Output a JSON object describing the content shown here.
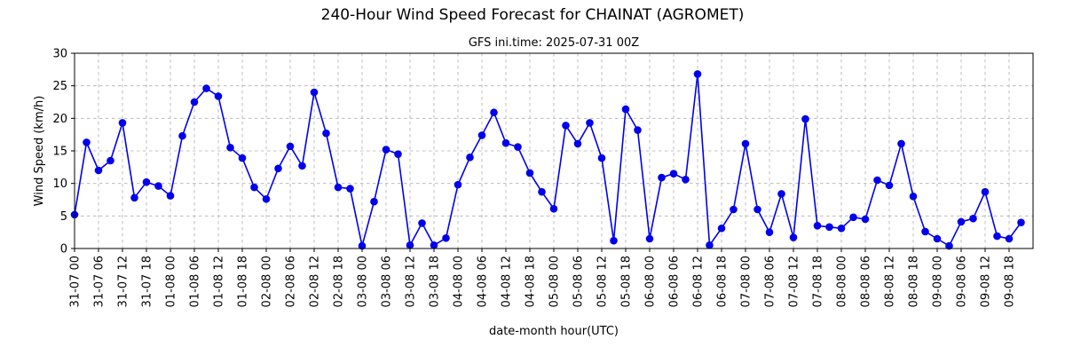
{
  "chart_data": {
    "type": "line",
    "title": "240-Hour Wind Speed Forecast for CHAINAT (AGROMET)",
    "subtitle": "GFS ini.time: 2025-07-31 00Z",
    "xlabel": "date-month hour(UTC)",
    "ylabel": "Wind Speed (km/h)",
    "ylim": [
      0,
      30
    ],
    "yticks": [
      0,
      5,
      10,
      15,
      20,
      25,
      30
    ],
    "grid": true,
    "colors": {
      "line": "#0000ee",
      "marker": "#0000ee"
    },
    "x_ticks": [
      "31-07 00",
      "31-07 06",
      "31-07 12",
      "31-07 18",
      "01-08 00",
      "01-08 06",
      "01-08 12",
      "01-08 18",
      "02-08 00",
      "02-08 06",
      "02-08 12",
      "02-08 18",
      "03-08 00",
      "03-08 06",
      "03-08 12",
      "03-08 18",
      "04-08 00",
      "04-08 06",
      "04-08 12",
      "04-08 18",
      "05-08 00",
      "05-08 06",
      "05-08 12",
      "05-08 18",
      "06-08 00",
      "06-08 06",
      "06-08 12",
      "06-08 18",
      "07-08 00",
      "07-08 06",
      "07-08 12",
      "07-08 18",
      "08-08 00",
      "08-08 06",
      "08-08 12",
      "08-08 18",
      "09-08 00",
      "09-08 06",
      "09-08 12",
      "09-08 18"
    ],
    "x_step_hours": 3,
    "values": [
      5.2,
      16.3,
      12.0,
      13.5,
      19.3,
      7.8,
      10.2,
      9.6,
      8.1,
      17.3,
      22.5,
      24.6,
      23.4,
      15.5,
      13.9,
      9.4,
      7.6,
      12.3,
      15.7,
      12.7,
      24.0,
      17.7,
      9.4,
      9.2,
      0.4,
      7.2,
      15.2,
      14.5,
      0.5,
      3.9,
      0.5,
      1.6,
      9.8,
      14.0,
      17.4,
      20.9,
      16.2,
      15.6,
      11.6,
      8.7,
      6.1,
      18.9,
      16.1,
      19.3,
      13.9,
      1.2,
      21.4,
      18.2,
      1.5,
      10.9,
      11.5,
      10.6,
      26.8,
      0.5,
      3.1,
      6.0,
      16.1,
      6.0,
      2.5,
      8.4,
      1.7,
      19.9,
      3.5,
      3.3,
      3.1,
      4.8,
      4.5,
      10.5,
      9.7,
      16.1,
      8.0,
      2.6,
      1.5,
      0.4,
      4.1,
      4.6,
      8.7,
      1.9,
      1.5,
      4.0
    ]
  }
}
